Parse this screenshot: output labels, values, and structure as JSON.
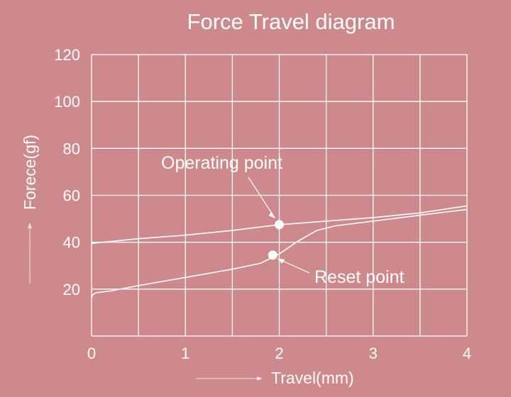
{
  "chart_data": {
    "type": "line",
    "title": "Force Travel diagram",
    "xlabel": "Travel(mm)",
    "ylabel": "Forece(gf)",
    "xlim": [
      0,
      4
    ],
    "ylim": [
      0,
      120
    ],
    "xticks": [
      "0",
      "1",
      "2",
      "3",
      "4"
    ],
    "yticks": [
      "20",
      "40",
      "60",
      "80",
      "100",
      "120"
    ],
    "grid": true,
    "series": [
      {
        "x": [
          0,
          0.5,
          1,
          1.5,
          2,
          2.5,
          3,
          3.5,
          4
        ],
        "y": [
          39.5,
          41.5,
          43,
          45,
          47.5,
          49,
          50.5,
          52.5,
          55.5
        ]
      },
      {
        "x": [
          0,
          0.01,
          0.05,
          0.2,
          0.5,
          1,
          1.5,
          1.8,
          2.0,
          2.2,
          2.4,
          2.6,
          3,
          3.5,
          4
        ],
        "y": [
          16,
          17.5,
          18.5,
          19.2,
          21.5,
          25,
          28.5,
          31,
          35,
          40.5,
          45,
          47,
          49,
          51.5,
          54
        ]
      }
    ],
    "annotations": [
      {
        "label": "Operating point",
        "x": 2.0,
        "y": 47.5
      },
      {
        "label": "Reset point",
        "x": 1.93,
        "y": 34.5
      }
    ],
    "colors": {
      "background": "#cd898c",
      "foreground": "#ffffff"
    }
  }
}
